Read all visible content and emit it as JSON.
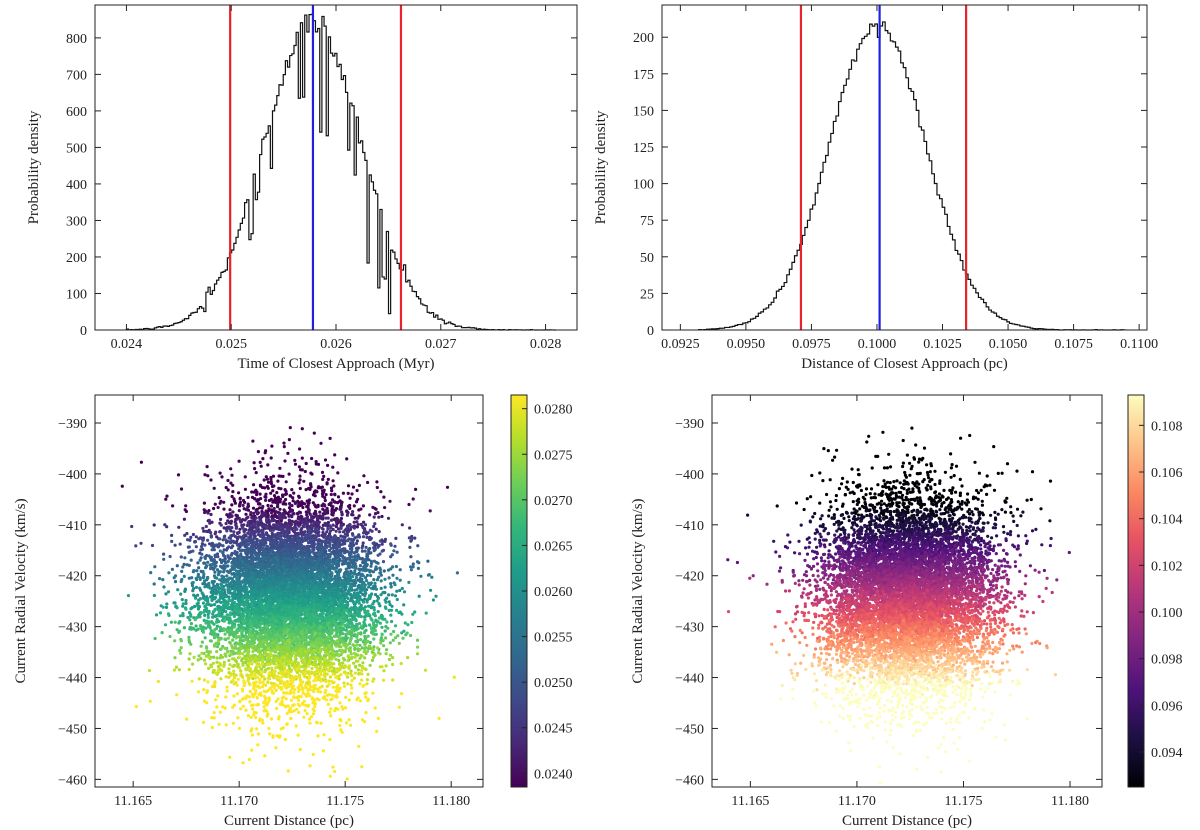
{
  "chart_data": [
    {
      "id": "time-hist",
      "type": "histogram",
      "xlabel": "Time of Closest Approach (Myr)",
      "ylabel": "Probability density",
      "xlim": [
        0.0237,
        0.0283
      ],
      "ylim": [
        0,
        890
      ],
      "xticks": [
        0.024,
        0.025,
        0.026,
        0.027,
        0.028
      ],
      "xtick_labels": [
        "0.024",
        "0.025",
        "0.026",
        "0.027",
        "0.028"
      ],
      "yticks": [
        0,
        100,
        200,
        300,
        400,
        500,
        600,
        700,
        800
      ],
      "ytick_labels": [
        "0",
        "100",
        "200",
        "300",
        "400",
        "500",
        "600",
        "700",
        "800"
      ],
      "bins": {
        "start": 0.024,
        "end": 0.0281,
        "count": 200,
        "center": 0.02578,
        "sigma": 0.00047,
        "peak": 845
      },
      "spikes": [
        [
          0.02519,
          -130
        ],
        [
          0.02525,
          -95
        ],
        [
          0.02538,
          -150
        ],
        [
          0.02565,
          -190
        ],
        [
          0.0257,
          -220
        ],
        [
          0.02585,
          -290
        ],
        [
          0.02592,
          -300
        ],
        [
          0.02612,
          -160
        ],
        [
          0.02618,
          -140
        ],
        [
          0.0263,
          -260
        ],
        [
          0.0264,
          -240
        ],
        [
          0.02652,
          -210
        ],
        [
          0.02646,
          -150
        ],
        [
          0.02474,
          -25
        ],
        [
          0.02478,
          20
        ],
        [
          0.02666,
          25
        ]
      ],
      "vlines": [
        {
          "label": "lower",
          "x": 0.02499,
          "color": "#e8232b"
        },
        {
          "label": "median",
          "x": 0.02578,
          "color": "#1f1fe0"
        },
        {
          "label": "upper",
          "x": 0.02662,
          "color": "#e8232b"
        }
      ]
    },
    {
      "id": "distance-hist",
      "type": "histogram",
      "xlabel": "Distance of Closest Approach (pc)",
      "ylabel": "Probability density",
      "xlim": [
        0.0918,
        0.1103
      ],
      "ylim": [
        0,
        222
      ],
      "xticks": [
        0.0925,
        0.095,
        0.0975,
        0.1,
        0.1025,
        0.105,
        0.1075,
        0.11
      ],
      "xtick_labels": [
        "0.0925",
        "0.0950",
        "0.0975",
        "0.1000",
        "0.1025",
        "0.1050",
        "0.1075",
        "0.1100"
      ],
      "yticks": [
        0,
        25,
        50,
        75,
        100,
        125,
        150,
        175,
        200
      ],
      "ytick_labels": [
        "0",
        "25",
        "50",
        "75",
        "100",
        "125",
        "150",
        "175",
        "200"
      ],
      "bins": {
        "start": 0.0932,
        "end": 0.1095,
        "count": 165,
        "center": 0.10003,
        "sigma": 0.00185,
        "peak": 208
      },
      "spikes": [
        [
          0.0998,
          4
        ],
        [
          0.1001,
          -5
        ],
        [
          0.1003,
          3
        ]
      ],
      "vlines": [
        {
          "label": "lower",
          "x": 0.0971,
          "color": "#e8232b"
        },
        {
          "label": "median",
          "x": 0.1001,
          "color": "#1f1fe0"
        },
        {
          "label": "upper",
          "x": 0.1034,
          "color": "#e8232b"
        }
      ]
    },
    {
      "id": "scatter-time",
      "type": "scatter",
      "xlabel": "Current Distance (pc)",
      "ylabel": "Current Radial Velocity (km/s)",
      "xlim": [
        11.1632,
        11.1815
      ],
      "ylim": [
        -461.5,
        -384.5
      ],
      "xticks": [
        11.165,
        11.17,
        11.175,
        11.18
      ],
      "xtick_labels": [
        "11.165",
        "11.170",
        "11.175",
        "11.180"
      ],
      "yticks": [
        -390,
        -400,
        -410,
        -420,
        -430,
        -440,
        -450,
        -460
      ],
      "ytick_labels": [
        "−390",
        "−400",
        "−410",
        "−420",
        "−430",
        "−440",
        "−450",
        "−460"
      ],
      "cloud": {
        "x_mean": 11.1724,
        "x_sigma": 0.00205,
        "y_mean": -424,
        "y_sigma": 9.8,
        "n_points": 9000
      },
      "color_by": "time of closest approach (Myr)",
      "colormap": "viridis",
      "colorbar": {
        "range": [
          0.02385,
          0.02815
        ],
        "ticks": [
          0.024,
          0.0245,
          0.025,
          0.0255,
          0.026,
          0.0265,
          0.027,
          0.0275,
          0.028
        ],
        "tick_labels": [
          "0.0240",
          "0.0245",
          "0.0250",
          "0.0255",
          "0.0260",
          "0.0265",
          "0.0270",
          "0.0275",
          "0.0280"
        ]
      }
    },
    {
      "id": "scatter-distance",
      "type": "scatter",
      "xlabel": "Current Distance (pc)",
      "ylabel": "Current Radial Velocity (km/s)",
      "xlim": [
        11.1632,
        11.1815
      ],
      "ylim": [
        -461.5,
        -384.5
      ],
      "xticks": [
        11.165,
        11.17,
        11.175,
        11.18
      ],
      "xtick_labels": [
        "11.165",
        "11.170",
        "11.175",
        "11.180"
      ],
      "yticks": [
        -390,
        -400,
        -410,
        -420,
        -430,
        -440,
        -450,
        -460
      ],
      "ytick_labels": [
        "−390",
        "−400",
        "−410",
        "−420",
        "−430",
        "−440",
        "−450",
        "−460"
      ],
      "cloud": {
        "x_mean": 11.1724,
        "x_sigma": 0.00205,
        "y_mean": -424,
        "y_sigma": 9.8,
        "n_points": 9000
      },
      "color_by": "distance of closest approach (pc)",
      "colormap": "magma",
      "colorbar": {
        "range": [
          0.0925,
          0.1093
        ],
        "ticks": [
          0.094,
          0.096,
          0.098,
          0.1,
          0.102,
          0.104,
          0.106,
          0.108
        ],
        "tick_labels": [
          "0.094",
          "0.096",
          "0.098",
          "0.100",
          "0.102",
          "0.104",
          "0.106",
          "0.108"
        ]
      }
    }
  ],
  "colors": {
    "histogram_line": "#111111",
    "red_line": "#e8232b",
    "blue_line": "#1f1fe0",
    "viridis": [
      "#440154",
      "#482878",
      "#3e4a89",
      "#31688e",
      "#26828e",
      "#1f9e89",
      "#35b779",
      "#6ece58",
      "#b5de2b",
      "#fde725"
    ],
    "magma": [
      "#000004",
      "#1c1044",
      "#4f127b",
      "#812581",
      "#b5367a",
      "#e55064",
      "#fb8761",
      "#fec287",
      "#fcfdbf"
    ]
  }
}
